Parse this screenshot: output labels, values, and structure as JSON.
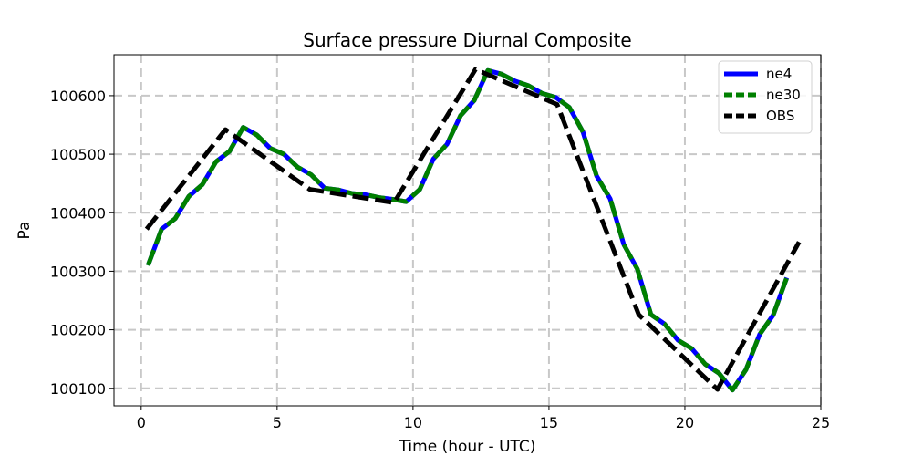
{
  "chart_data": {
    "type": "line",
    "title": "Surface pressure Diurnal Composite",
    "xlabel": "Time (hour - UTC)",
    "ylabel": "Pa",
    "xlim": [
      -1,
      25
    ],
    "ylim": [
      100070,
      100670
    ],
    "xticks": [
      0,
      5,
      10,
      15,
      20,
      25
    ],
    "yticks": [
      100100,
      100200,
      100300,
      100400,
      100500,
      100600
    ],
    "grid": true,
    "legend_position": "top-right",
    "series": [
      {
        "name": "ne4",
        "color": "#0000ff",
        "style": "solid",
        "x": [
          0.25,
          0.75,
          1.25,
          1.75,
          2.25,
          2.75,
          3.25,
          3.75,
          4.25,
          4.75,
          5.25,
          5.75,
          6.25,
          6.75,
          7.25,
          7.75,
          8.25,
          8.75,
          9.25,
          9.75,
          10.25,
          10.75,
          11.25,
          11.75,
          12.25,
          12.75,
          13.25,
          13.75,
          14.25,
          14.75,
          15.25,
          15.75,
          16.25,
          16.75,
          17.25,
          17.75,
          18.25,
          18.75,
          19.25,
          19.75,
          20.25,
          20.75,
          21.25,
          21.75,
          22.25,
          22.75,
          23.25,
          23.75
        ],
        "y": [
          100310,
          100372,
          100390,
          100428,
          100448,
          100487,
          100505,
          100546,
          100533,
          100510,
          100500,
          100478,
          100465,
          100442,
          100439,
          100433,
          100431,
          100426,
          100423,
          100419,
          100440,
          100492,
          100517,
          100566,
          100592,
          100643,
          100637,
          100625,
          100617,
          100604,
          100597,
          100580,
          100538,
          100463,
          100424,
          100346,
          100304,
          100226,
          100210,
          100182,
          100168,
          100141,
          100126,
          100097,
          100132,
          100192,
          100225,
          100289
        ]
      },
      {
        "name": "ne30",
        "color": "#008000",
        "style": "dashed",
        "x": [
          0.25,
          0.75,
          1.25,
          1.75,
          2.25,
          2.75,
          3.25,
          3.75,
          4.25,
          4.75,
          5.25,
          5.75,
          6.25,
          6.75,
          7.25,
          7.75,
          8.25,
          8.75,
          9.25,
          9.75,
          10.25,
          10.75,
          11.25,
          11.75,
          12.25,
          12.75,
          13.25,
          13.75,
          14.25,
          14.75,
          15.25,
          15.75,
          16.25,
          16.75,
          17.25,
          17.75,
          18.25,
          18.75,
          19.25,
          19.75,
          20.25,
          20.75,
          21.25,
          21.75,
          22.25,
          22.75,
          23.25,
          23.75
        ],
        "y": [
          100310,
          100372,
          100390,
          100428,
          100448,
          100487,
          100505,
          100546,
          100533,
          100510,
          100500,
          100478,
          100465,
          100442,
          100439,
          100433,
          100431,
          100426,
          100423,
          100419,
          100440,
          100492,
          100517,
          100566,
          100592,
          100643,
          100637,
          100625,
          100617,
          100604,
          100597,
          100580,
          100538,
          100463,
          100424,
          100346,
          100304,
          100226,
          100210,
          100182,
          100168,
          100141,
          100126,
          100097,
          100132,
          100192,
          100225,
          100289
        ]
      },
      {
        "name": "OBS",
        "color": "#000000",
        "style": "dashed",
        "x": [
          0.2,
          3.1,
          6.2,
          9.3,
          12.3,
          15.3,
          18.3,
          21.2,
          24.2
        ],
        "y": [
          100372,
          100542,
          100440,
          100417,
          100645,
          100585,
          100226,
          100098,
          100350
        ]
      }
    ]
  }
}
